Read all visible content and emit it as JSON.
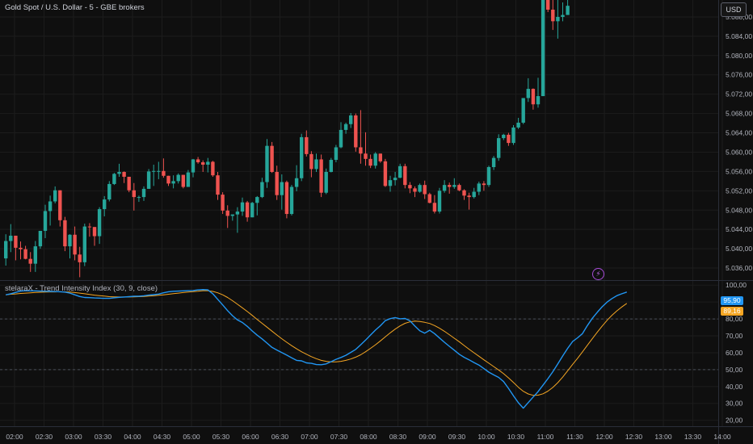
{
  "header": {
    "symbol_title": "Gold Spot / U.S. Dollar - 5 - GBE brokers",
    "currency_button": "USD",
    "indicator_title": "stelaraX - Trend Intensity Index (30, 9, close)"
  },
  "colors": {
    "background": "#0f0f0f",
    "grid": "#1c1c1c",
    "up": "#26a69a",
    "down": "#ef5350",
    "tii_line": "#2196f3",
    "signal_line": "#f5a623",
    "level_line": "#3a3d45",
    "axis_text": "#b2b5be",
    "bolt": "#a84cd9"
  },
  "icons": {
    "bolt": "lightning-bolt-icon"
  },
  "chart_data": [
    {
      "type": "candlestick",
      "title": "Gold Spot / U.S. Dollar - 5 - GBE brokers",
      "interval_minutes": 5,
      "x_axis_labels": [
        "02:00",
        "02:30",
        "03:00",
        "03:30",
        "04:00",
        "04:30",
        "05:00",
        "05:30",
        "06:00",
        "06:30",
        "07:00",
        "07:30",
        "08:00",
        "08:30",
        "09:00",
        "09:30",
        "10:00",
        "10:30",
        "11:00",
        "11:30",
        "12:00",
        "12:30",
        "13:00",
        "13:30",
        "14:00"
      ],
      "y_ticks": [
        "5.036,00",
        "5.040,00",
        "5.044,00",
        "5.048,00",
        "5.052,00",
        "5.056,00",
        "5.060,00",
        "5.064,00",
        "5.068,00",
        "5.072,00",
        "5.076,00",
        "5.080,00",
        "5.084,00",
        "5.088,00"
      ],
      "ylim": [
        5033.5,
        5091.5
      ],
      "grid": true,
      "candles": [
        [
          5038.0,
          5043.0,
          5036.5,
          5041.6
        ],
        [
          5041.6,
          5045.1,
          5039.3,
          5042.7
        ],
        [
          5042.7,
          5042.7,
          5037.6,
          5040.2
        ],
        [
          5040.2,
          5041.5,
          5037.8,
          5039.9
        ],
        [
          5039.9,
          5040.6,
          5037.8,
          5037.9
        ],
        [
          5037.9,
          5039.3,
          5035.2,
          5036.9
        ],
        [
          5036.9,
          5041.6,
          5035.2,
          5040.5
        ],
        [
          5040.5,
          5043.7,
          5040.0,
          5043.7
        ],
        [
          5043.7,
          5049.1,
          5042.2,
          5047.8
        ],
        [
          5047.8,
          5051.0,
          5044.8,
          5049.8
        ],
        [
          5049.8,
          5052.9,
          5049.4,
          5052.1
        ],
        [
          5052.1,
          5052.1,
          5044.6,
          5045.9
        ],
        [
          5045.9,
          5046.6,
          5039.5,
          5040.5
        ],
        [
          5040.5,
          5043.0,
          5038.0,
          5042.9
        ],
        [
          5042.9,
          5044.6,
          5037.6,
          5038.8
        ],
        [
          5038.8,
          5040.4,
          5034.1,
          5037.2
        ],
        [
          5037.2,
          5045.2,
          5036.4,
          5044.6
        ],
        [
          5044.6,
          5045.3,
          5042.5,
          5044.5
        ],
        [
          5044.5,
          5044.5,
          5040.6,
          5042.6
        ],
        [
          5042.6,
          5048.6,
          5041.0,
          5048.2
        ],
        [
          5048.2,
          5050.9,
          5046.7,
          5050.2
        ],
        [
          5050.2,
          5054.0,
          5049.8,
          5053.4
        ],
        [
          5053.4,
          5055.7,
          5053.2,
          5055.5
        ],
        [
          5055.5,
          5057.6,
          5054.9,
          5055.9
        ],
        [
          5055.9,
          5056.0,
          5053.6,
          5054.9
        ],
        [
          5054.9,
          5054.9,
          5051.7,
          5052.1
        ],
        [
          5052.1,
          5053.6,
          5047.9,
          5050.7
        ],
        [
          5050.7,
          5051.0,
          5049.7,
          5050.7
        ],
        [
          5050.7,
          5052.9,
          5049.9,
          5052.4
        ],
        [
          5052.4,
          5056.5,
          5052.4,
          5056.0
        ],
        [
          5056.0,
          5057.4,
          5053.0,
          5056.1
        ],
        [
          5056.1,
          5058.0,
          5054.4,
          5056.1
        ],
        [
          5056.1,
          5058.7,
          5054.7,
          5055.1
        ],
        [
          5055.1,
          5055.1,
          5053.0,
          5053.5
        ],
        [
          5053.5,
          5055.2,
          5052.5,
          5054.0
        ],
        [
          5054.0,
          5055.6,
          5053.5,
          5055.3
        ],
        [
          5055.3,
          5055.3,
          5052.5,
          5052.8
        ],
        [
          5052.8,
          5056.3,
          5052.8,
          5055.8
        ],
        [
          5055.8,
          5058.6,
          5054.8,
          5058.5
        ],
        [
          5058.5,
          5059.0,
          5057.6,
          5057.9
        ],
        [
          5057.9,
          5058.3,
          5055.9,
          5057.4
        ],
        [
          5057.4,
          5058.8,
          5055.8,
          5058.0
        ],
        [
          5058.0,
          5058.2,
          5054.9,
          5055.2
        ],
        [
          5055.2,
          5055.9,
          5050.1,
          5051.2
        ],
        [
          5051.2,
          5051.7,
          5047.2,
          5047.9
        ],
        [
          5047.9,
          5049.0,
          5044.3,
          5046.8
        ],
        [
          5046.8,
          5047.1,
          5045.8,
          5047.1
        ],
        [
          5047.1,
          5048.6,
          5043.3,
          5047.7
        ],
        [
          5047.7,
          5050.6,
          5046.8,
          5049.6
        ],
        [
          5049.6,
          5049.9,
          5045.6,
          5046.5
        ],
        [
          5046.5,
          5049.7,
          5046.5,
          5049.5
        ],
        [
          5049.5,
          5050.9,
          5046.9,
          5050.7
        ],
        [
          5050.7,
          5054.7,
          5050.5,
          5053.8
        ],
        [
          5053.8,
          5062.7,
          5052.6,
          5061.3
        ],
        [
          5061.3,
          5062.1,
          5055.7,
          5055.9
        ],
        [
          5055.9,
          5057.2,
          5050.1,
          5051.1
        ],
        [
          5051.1,
          5055.4,
          5048.1,
          5053.8
        ],
        [
          5053.8,
          5054.1,
          5046.3,
          5047.2
        ],
        [
          5047.2,
          5053.2,
          5046.9,
          5052.8
        ],
        [
          5052.8,
          5057.3,
          5051.9,
          5054.6
        ],
        [
          5054.6,
          5063.8,
          5054.0,
          5063.1
        ],
        [
          5063.1,
          5064.5,
          5059.1,
          5059.6
        ],
        [
          5059.6,
          5060.2,
          5054.8,
          5056.5
        ],
        [
          5056.5,
          5059.7,
          5055.9,
          5058.5
        ],
        [
          5058.5,
          5059.5,
          5050.7,
          5051.6
        ],
        [
          5051.6,
          5056.6,
          5051.3,
          5055.9
        ],
        [
          5055.9,
          5058.8,
          5055.8,
          5058.4
        ],
        [
          5058.4,
          5061.5,
          5057.9,
          5061.0
        ],
        [
          5061.0,
          5066.2,
          5060.8,
          5064.6
        ],
        [
          5064.6,
          5066.1,
          5063.8,
          5065.8
        ],
        [
          5065.8,
          5068.1,
          5065.0,
          5067.6
        ],
        [
          5067.6,
          5068.0,
          5060.1,
          5061.0
        ],
        [
          5061.0,
          5068.7,
          5057.6,
          5059.7
        ],
        [
          5059.7,
          5064.1,
          5057.2,
          5058.6
        ],
        [
          5058.6,
          5059.5,
          5056.7,
          5057.2
        ],
        [
          5057.2,
          5060.0,
          5056.6,
          5059.7
        ],
        [
          5059.7,
          5059.7,
          5057.8,
          5058.1
        ],
        [
          5058.1,
          5058.6,
          5052.8,
          5053.0
        ],
        [
          5053.0,
          5055.1,
          5051.8,
          5054.2
        ],
        [
          5054.2,
          5055.9,
          5053.1,
          5054.7
        ],
        [
          5054.7,
          5057.6,
          5054.6,
          5057.1
        ],
        [
          5057.1,
          5057.6,
          5052.5,
          5053.2
        ],
        [
          5053.2,
          5053.8,
          5051.5,
          5052.5
        ],
        [
          5052.5,
          5052.9,
          5050.7,
          5051.8
        ],
        [
          5051.8,
          5053.5,
          5051.6,
          5053.2
        ],
        [
          5053.2,
          5054.1,
          5050.3,
          5051.3
        ],
        [
          5051.3,
          5051.6,
          5049.4,
          5049.5
        ],
        [
          5049.5,
          5051.1,
          5047.3,
          5047.7
        ],
        [
          5047.7,
          5052.6,
          5047.3,
          5052.0
        ],
        [
          5052.0,
          5054.2,
          5051.6,
          5053.2
        ],
        [
          5053.2,
          5053.7,
          5051.4,
          5052.8
        ],
        [
          5052.8,
          5054.6,
          5052.4,
          5053.2
        ],
        [
          5053.2,
          5053.5,
          5051.9,
          5052.1
        ],
        [
          5052.1,
          5052.3,
          5050.1,
          5051.0
        ],
        [
          5051.0,
          5051.6,
          5048.1,
          5050.7
        ],
        [
          5050.7,
          5052.6,
          5050.4,
          5051.8
        ],
        [
          5051.8,
          5053.9,
          5051.1,
          5053.5
        ],
        [
          5053.5,
          5054.0,
          5052.0,
          5053.2
        ],
        [
          5053.2,
          5057.2,
          5052.8,
          5056.9
        ],
        [
          5056.9,
          5059.2,
          5056.3,
          5058.8
        ],
        [
          5058.8,
          5063.7,
          5058.2,
          5062.9
        ],
        [
          5062.9,
          5063.8,
          5062.5,
          5063.6
        ],
        [
          5063.6,
          5064.0,
          5061.3,
          5061.9
        ],
        [
          5061.9,
          5065.6,
          5061.5,
          5065.1
        ],
        [
          5065.1,
          5067.1,
          5064.8,
          5066.1
        ],
        [
          5066.1,
          5071.2,
          5065.8,
          5071.2
        ],
        [
          5071.2,
          5075.3,
          5070.4,
          5073.1
        ],
        [
          5073.1,
          5073.2,
          5068.8,
          5069.9
        ],
        [
          5069.9,
          5075.4,
          5069.2,
          5071.6
        ],
        [
          5071.6,
          5091.5,
          5071.6,
          5091.5
        ],
        [
          5091.5,
          5091.5,
          5089.0,
          5089.5
        ],
        [
          5089.5,
          5091.5,
          5085.3,
          5087.1
        ],
        [
          5087.1,
          5091.5,
          5083.5,
          5088.0
        ],
        [
          5088.0,
          5091.0,
          5087.1,
          5088.4
        ],
        [
          5088.4,
          5091.5,
          5088.4,
          5090.3
        ]
      ]
    },
    {
      "type": "line",
      "title": "stelaraX - Trend Intensity Index (30, 9, close)",
      "y_ticks": [
        "20,00",
        "30,00",
        "40,00",
        "50,00",
        "60,00",
        "70,00",
        "80,00",
        "90,00",
        "100,00"
      ],
      "ylim": [
        16.5,
        102.5
      ],
      "levels": [
        80,
        50
      ],
      "grid": true,
      "last_values": {
        "tii": "95,90",
        "signal": "89,16"
      },
      "series": [
        {
          "key": "tii",
          "values": [
            94.3,
            94.9,
            95.7,
            96.5,
            96.7,
            96.6,
            96.6,
            96.5,
            96.4,
            96.3,
            96.2,
            96.1,
            95.9,
            95.3,
            94.3,
            93.3,
            92.7,
            92.6,
            92.4,
            92.3,
            92.2,
            92.2,
            92.5,
            92.8,
            93.0,
            93.2,
            93.4,
            93.4,
            93.7,
            94.1,
            94.4,
            94.7,
            95.5,
            96.1,
            96.4,
            96.5,
            96.6,
            96.7,
            96.8,
            97.2,
            97.4,
            97.2,
            94.9,
            91.6,
            88.3,
            84.9,
            81.9,
            79.4,
            77.9,
            75.6,
            72.9,
            70.4,
            68.2,
            65.7,
            63.2,
            61.6,
            60.1,
            58.6,
            57.0,
            55.5,
            55.2,
            54.0,
            53.7,
            53.0,
            52.9,
            53.4,
            54.7,
            56.1,
            57.2,
            58.5,
            60.2,
            62.0,
            64.7,
            67.5,
            70.5,
            73.4,
            76.0,
            79.0,
            80.2,
            80.8,
            80.1,
            80.3,
            78.9,
            75.8,
            73.0,
            71.6,
            73.3,
            71.3,
            68.7,
            66.2,
            63.8,
            61.5,
            59.1,
            57.3,
            55.8,
            54.2,
            52.7,
            50.6,
            48.5,
            46.9,
            45.4,
            42.9,
            38.9,
            34.5,
            30.4,
            27.2,
            30.5,
            33.8,
            37.0,
            40.8,
            44.7,
            48.8,
            53.4,
            58.1,
            62.6,
            66.6,
            68.8,
            71.3,
            76.1,
            80.4,
            83.9,
            87.2,
            90.0,
            92.1,
            93.8,
            94.9,
            95.9
          ]
        },
        {
          "key": "signal",
          "values": [
            94.3,
            94.6,
            94.8,
            95.1,
            95.3,
            95.5,
            95.7,
            95.8,
            95.9,
            96.0,
            96.0,
            96.1,
            96.0,
            95.9,
            95.6,
            95.3,
            94.9,
            94.5,
            94.1,
            93.8,
            93.5,
            93.2,
            93.1,
            93.0,
            93.0,
            93.0,
            93.1,
            93.2,
            93.3,
            93.5,
            93.7,
            94.0,
            94.3,
            94.6,
            95.0,
            95.3,
            95.6,
            95.9,
            96.2,
            96.4,
            96.7,
            96.7,
            96.3,
            95.5,
            94.3,
            92.7,
            90.8,
            88.7,
            86.6,
            84.4,
            82.1,
            79.7,
            77.4,
            75.1,
            72.8,
            70.5,
            68.3,
            66.2,
            64.2,
            62.3,
            60.6,
            59.1,
            57.7,
            56.5,
            55.5,
            54.9,
            54.6,
            54.6,
            54.9,
            55.5,
            56.3,
            57.4,
            58.8,
            60.6,
            62.6,
            64.7,
            67.0,
            69.4,
            71.8,
            74.0,
            75.9,
            77.4,
            78.3,
            78.7,
            78.5,
            78.0,
            77.3,
            76.1,
            74.5,
            72.7,
            70.7,
            68.6,
            66.5,
            64.3,
            62.1,
            60.0,
            57.9,
            55.8,
            53.8,
            51.8,
            49.8,
            47.6,
            45.1,
            42.4,
            39.6,
            37.2,
            35.6,
            34.8,
            34.9,
            35.7,
            37.3,
            39.5,
            42.3,
            45.6,
            49.3,
            53.1,
            56.7,
            60.5,
            64.4,
            68.3,
            72.1,
            75.8,
            79.2,
            82.2,
            84.8,
            87.1,
            89.2
          ]
        }
      ]
    }
  ]
}
